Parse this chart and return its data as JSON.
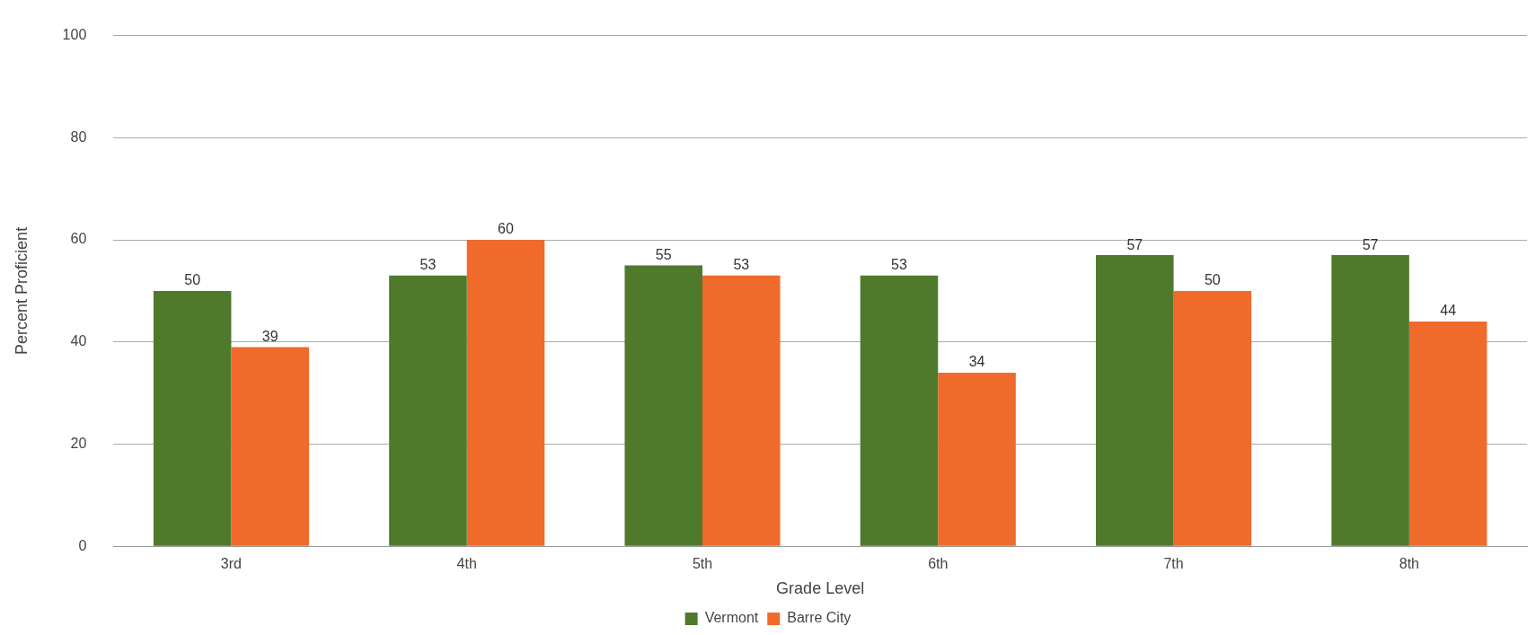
{
  "chart_data": {
    "type": "bar",
    "xlabel": "Grade Level",
    "ylabel": "Percent Proficient",
    "categories": [
      "3rd",
      "4th",
      "5th",
      "6th",
      "7th",
      "8th"
    ],
    "series": [
      {
        "name": "Vermont",
        "color": "#4f7a2b",
        "values": [
          50,
          53,
          55,
          53,
          57,
          57
        ]
      },
      {
        "name": "Barre City",
        "color": "#f06a2c",
        "values": [
          39,
          60,
          53,
          34,
          50,
          44
        ]
      }
    ],
    "ylim": [
      0,
      100
    ],
    "yticks": [
      0,
      20,
      40,
      60,
      80,
      100
    ],
    "grid": "y",
    "legend": "bottom",
    "data_labels": true
  }
}
